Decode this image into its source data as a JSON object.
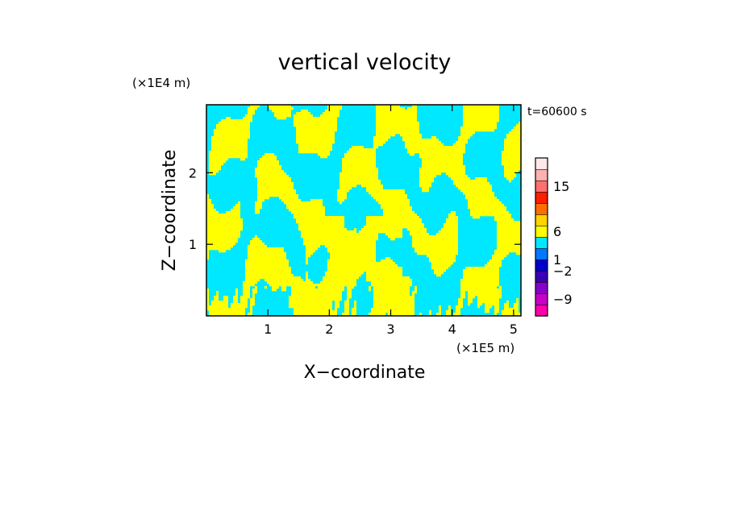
{
  "chart_data": {
    "type": "heatmap",
    "title": "vertical velocity",
    "xlabel": "X−coordinate",
    "ylabel": "Z−coordinate",
    "x_unit": "(×1E5 m)",
    "y_unit": "(×1E4 m)",
    "annotation": "t=60600 s",
    "xlim": [
      0,
      5.12
    ],
    "ylim": [
      0,
      2.95
    ],
    "x_ticks": [
      1,
      2,
      3,
      4,
      5
    ],
    "y_ticks": [
      1,
      2
    ],
    "grid": false,
    "dominant_colors": {
      "positive": "#ffff00",
      "negative": "#00e8ff"
    },
    "colorbar": {
      "placement": "right",
      "labeled_levels": [
        "15",
        "6",
        "1",
        "−2",
        "−9"
      ],
      "colors_bottom_to_top": [
        "#ff00aa",
        "#c800c8",
        "#8800cc",
        "#3c00b4",
        "#0000cc",
        "#0078ff",
        "#00e8ff",
        "#ffff00",
        "#ffd200",
        "#ff6e00",
        "#ff1e00",
        "#ff7070",
        "#ffb0b0",
        "#ffe8e8"
      ]
    }
  }
}
